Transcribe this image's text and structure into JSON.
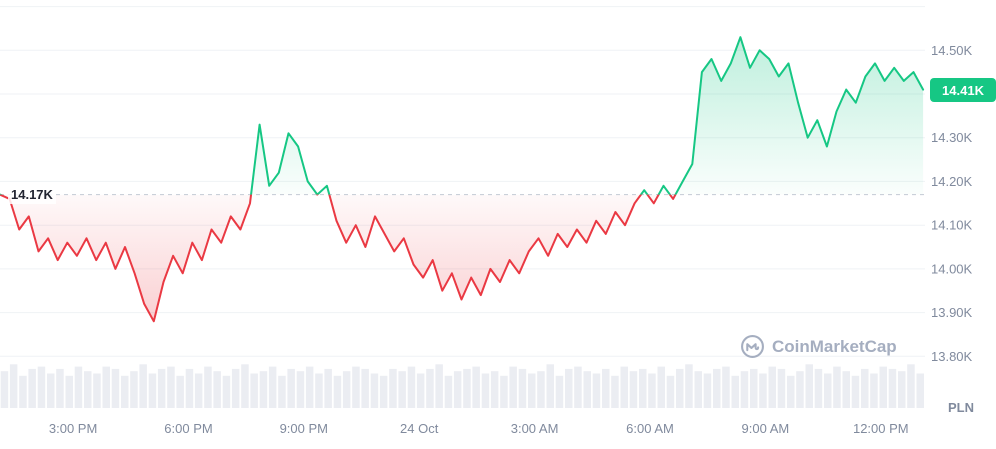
{
  "watermark": {
    "label": "CoinMarketCap"
  },
  "chart_data": {
    "type": "area",
    "currency": "PLN",
    "xlim": [
      13.1,
      37.15
    ],
    "ylim": [
      13.755,
      14.615
    ],
    "gridlines": [
      14.6,
      14.5,
      14.4,
      14.3,
      14.2,
      14.1,
      14.0,
      13.9,
      13.8
    ],
    "y_ticks": [
      {
        "label": "14.50K",
        "value": 14.5
      },
      {
        "label": "14.30K",
        "value": 14.3
      },
      {
        "label": "14.20K",
        "value": 14.2
      },
      {
        "label": "14.10K",
        "value": 14.1
      },
      {
        "label": "14.00K",
        "value": 14.0
      },
      {
        "label": "13.90K",
        "value": 13.9
      },
      {
        "label": "13.80K",
        "value": 13.8
      }
    ],
    "x_ticks": [
      {
        "label": "3:00 PM",
        "hour": 15
      },
      {
        "label": "6:00 PM",
        "hour": 18
      },
      {
        "label": "9:00 PM",
        "hour": 21
      },
      {
        "label": "24 Oct",
        "hour": 24
      },
      {
        "label": "3:00 AM",
        "hour": 27
      },
      {
        "label": "6:00 AM",
        "hour": 30
      },
      {
        "label": "9:00 AM",
        "hour": 33
      },
      {
        "label": "12:00 PM",
        "hour": 36
      }
    ],
    "baseline": {
      "value": 14.17,
      "label": "14.17K"
    },
    "current_price": {
      "value": 14.41,
      "label": "14.41K"
    },
    "colors": {
      "up": "#16c784",
      "down": "#ea3943",
      "grid": "#eff2f5",
      "volume": "#ebedf2",
      "text": "#808a9d",
      "baseline_text": "#222531",
      "baseline_line": "#c3c9d4",
      "badge_text": "#ffffff",
      "watermark": "#a5aec0"
    },
    "series": [
      {
        "name": "price",
        "x_start": 13.1,
        "x_step": 0.25,
        "values": [
          14.17,
          14.16,
          14.09,
          14.12,
          14.04,
          14.07,
          14.02,
          14.06,
          14.03,
          14.07,
          14.02,
          14.06,
          14.0,
          14.05,
          13.99,
          13.92,
          13.88,
          13.97,
          14.03,
          13.99,
          14.06,
          14.02,
          14.09,
          14.06,
          14.12,
          14.09,
          14.15,
          14.33,
          14.19,
          14.22,
          14.31,
          14.28,
          14.2,
          14.17,
          14.19,
          14.11,
          14.06,
          14.1,
          14.05,
          14.12,
          14.08,
          14.04,
          14.07,
          14.01,
          13.98,
          14.02,
          13.95,
          13.99,
          13.93,
          13.98,
          13.94,
          14.0,
          13.97,
          14.02,
          13.99,
          14.04,
          14.07,
          14.03,
          14.08,
          14.05,
          14.09,
          14.06,
          14.11,
          14.08,
          14.13,
          14.1,
          14.15,
          14.18,
          14.15,
          14.19,
          14.16,
          14.2,
          14.24,
          14.45,
          14.48,
          14.43,
          14.47,
          14.53,
          14.46,
          14.5,
          14.48,
          14.44,
          14.47,
          14.38,
          14.3,
          14.34,
          14.28,
          14.36,
          14.41,
          14.38,
          14.44,
          14.47,
          14.43,
          14.46,
          14.43,
          14.45,
          14.41
        ]
      }
    ],
    "volume": [
      0.8,
      0.95,
      0.7,
      0.85,
      0.9,
      0.75,
      0.85,
      0.7,
      0.9,
      0.8,
      0.75,
      0.9,
      0.85,
      0.7,
      0.8,
      0.95,
      0.75,
      0.85,
      0.9,
      0.7,
      0.85,
      0.75,
      0.9,
      0.8,
      0.7,
      0.85,
      0.95,
      0.75,
      0.8,
      0.9,
      0.7,
      0.85,
      0.8,
      0.9,
      0.75,
      0.85,
      0.7,
      0.8,
      0.9,
      0.85,
      0.75,
      0.7,
      0.85,
      0.8,
      0.9,
      0.75,
      0.85,
      0.95,
      0.7,
      0.8,
      0.85,
      0.9,
      0.75,
      0.8,
      0.7,
      0.9,
      0.85,
      0.75,
      0.8,
      0.95,
      0.7,
      0.85,
      0.9,
      0.8,
      0.75,
      0.85,
      0.7,
      0.9,
      0.8,
      0.85,
      0.75,
      0.9,
      0.7,
      0.85,
      0.95,
      0.8,
      0.75,
      0.85,
      0.9,
      0.7,
      0.8,
      0.85,
      0.75,
      0.9,
      0.85,
      0.7,
      0.8,
      0.95,
      0.85,
      0.75,
      0.9,
      0.8,
      0.7,
      0.85,
      0.75,
      0.9,
      0.85,
      0.8,
      0.95,
      0.75
    ]
  }
}
